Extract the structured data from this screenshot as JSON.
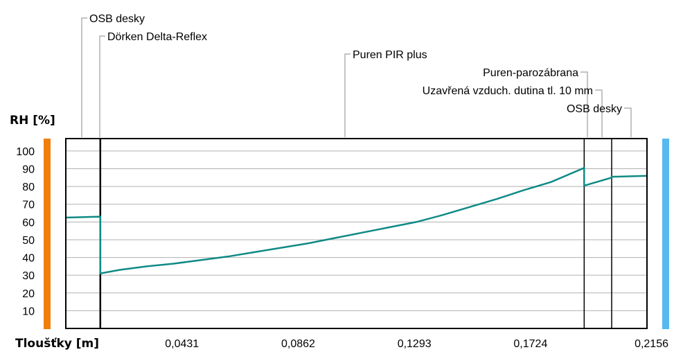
{
  "chart_data": {
    "type": "line",
    "ylabel": "RH [%]",
    "xlabel": "Tloušťky [m]",
    "xlim": [
      0,
      0.2156
    ],
    "ylim": [
      0,
      107
    ],
    "x_ticks": [
      "0,0431",
      "0,0862",
      "0,1293",
      "0,1724",
      "0,2156"
    ],
    "x_tick_values": [
      0.0431,
      0.0862,
      0.1293,
      0.1724,
      0.2156
    ],
    "y_ticks": [
      10,
      20,
      30,
      40,
      50,
      60,
      70,
      80,
      90,
      100
    ],
    "grid": true,
    "colors": {
      "series": "#0f8a85",
      "interior_bar": "#f07f0b",
      "exterior_bar": "#58b9ef",
      "grid": "#b0b0b0"
    },
    "series": [
      {
        "x": [
          0,
          0.0128,
          0.0128,
          0.02,
          0.03,
          0.04,
          0.05,
          0.06,
          0.07,
          0.08,
          0.09,
          0.1,
          0.11,
          0.12,
          0.13,
          0.14,
          0.15,
          0.16,
          0.17,
          0.18,
          0.1923,
          0.1923,
          0.2025,
          0.2025,
          0.2156
        ],
        "y": [
          62.5,
          63,
          31,
          33,
          35,
          36.5,
          38.5,
          40.5,
          43,
          45.5,
          48,
          51,
          54,
          57,
          60,
          64,
          68.5,
          73,
          78,
          82.5,
          90.5,
          80.5,
          85,
          85.5,
          86
        ]
      }
    ],
    "layer_boundaries": [
      0.0128,
      0.1923,
      0.2025
    ],
    "annotations": [
      {
        "text": "OSB desky",
        "x": 0.006
      },
      {
        "text": "Dörken Delta-Reflex",
        "x": 0.0128
      },
      {
        "text": "Puren PIR plus",
        "x": 0.1025
      },
      {
        "text": "Puren-parozábrana",
        "x": 0.1923
      },
      {
        "text": "Uzavřená vzduch. dutina tl. 10 mm",
        "x": 0.1975
      },
      {
        "text": "OSB desky",
        "x": 0.209
      }
    ]
  }
}
